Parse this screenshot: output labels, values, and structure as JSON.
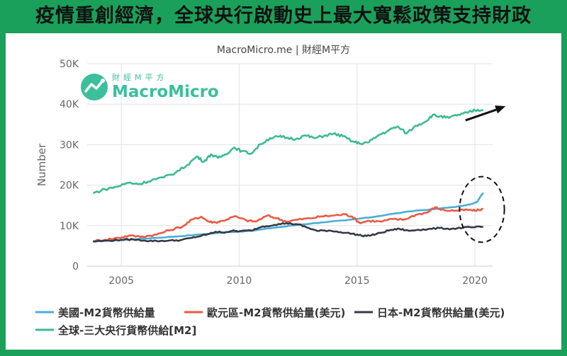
{
  "headline": "疫情重創經濟，全球央行啟動史上最大寬鬆政策支持財政",
  "logo": {
    "small_text": "財經M平方",
    "brand": "MacroMicro",
    "icon": "trend-line-icon",
    "color": "#3bbf9c"
  },
  "chart_data": {
    "type": "line",
    "title": "MacroMicro.me | 財經M平方",
    "xlabel": "",
    "ylabel": "Number",
    "xlim": [
      2003.55,
      2020.75
    ],
    "ylim": [
      0,
      50000
    ],
    "x_ticks": [
      2005,
      2010,
      2015,
      2020
    ],
    "x_tick_labels": [
      "2005",
      "2010",
      "2015",
      "2020"
    ],
    "y_ticks": [
      0,
      10000,
      20000,
      30000,
      40000,
      50000
    ],
    "y_tick_labels": [
      "0",
      "10K",
      "20K",
      "30K",
      "40K",
      "50K"
    ],
    "grid": true,
    "legend_position": "bottom",
    "series": [
      {
        "name": "美國-M2貨幣供給量",
        "color": "#4aaed6",
        "x": [
          2003.8,
          2004.5,
          2005.5,
          2006.5,
          2007.5,
          2008.5,
          2009.5,
          2010.5,
          2011.5,
          2012.5,
          2013.5,
          2014.5,
          2015.5,
          2016.5,
          2017.5,
          2018.5,
          2019.5,
          2019.9,
          2020.1,
          2020.25,
          2020.35
        ],
        "y": [
          6100,
          6300,
          6600,
          7000,
          7400,
          7900,
          8400,
          8700,
          9500,
          10200,
          10800,
          11300,
          12000,
          12900,
          13700,
          14200,
          14900,
          15400,
          15900,
          17300,
          18100
        ]
      },
      {
        "name": "歐元區-M2貨幣供給量(美元)",
        "color": "#ea5a45",
        "x": [
          2003.8,
          2004.3,
          2004.9,
          2005.3,
          2005.9,
          2006.5,
          2007.0,
          2007.6,
          2008.0,
          2008.4,
          2008.7,
          2009.0,
          2009.3,
          2009.8,
          2010.3,
          2010.7,
          2011.2,
          2011.6,
          2012.0,
          2012.5,
          2013.0,
          2013.5,
          2014.0,
          2014.5,
          2014.8,
          2015.1,
          2015.5,
          2016.0,
          2016.5,
          2017.0,
          2017.5,
          2018.0,
          2018.3,
          2018.7,
          2019.2,
          2019.7,
          2020.0,
          2020.35
        ],
        "y": [
          6200,
          6500,
          7000,
          7500,
          7300,
          7800,
          8800,
          9800,
          11500,
          12200,
          11000,
          10800,
          11200,
          12300,
          11300,
          11000,
          12500,
          11800,
          11000,
          11500,
          11800,
          12300,
          12500,
          12800,
          12200,
          10700,
          11200,
          11000,
          11600,
          11500,
          12700,
          13300,
          14500,
          13800,
          13700,
          13900,
          13700,
          14100
        ]
      },
      {
        "name": "日本-M2貨幣供給量(美元)",
        "color": "#333a44",
        "x": [
          2003.8,
          2004.5,
          2005.0,
          2005.5,
          2006.0,
          2006.5,
          2007.0,
          2007.5,
          2008.0,
          2008.4,
          2008.7,
          2009.0,
          2009.3,
          2009.7,
          2010.0,
          2010.5,
          2011.0,
          2011.5,
          2012.0,
          2012.5,
          2012.9,
          2013.3,
          2013.8,
          2014.3,
          2014.8,
          2015.2,
          2015.6,
          2016.0,
          2016.4,
          2016.8,
          2017.2,
          2017.6,
          2018.0,
          2018.5,
          2019.0,
          2019.5,
          2020.0,
          2020.35
        ],
        "y": [
          6100,
          6300,
          6500,
          6600,
          6300,
          6200,
          6300,
          6400,
          7000,
          7500,
          7900,
          8500,
          8300,
          8700,
          8600,
          8800,
          9800,
          10200,
          10600,
          10300,
          9500,
          8700,
          8800,
          8400,
          8000,
          7500,
          7600,
          8200,
          8900,
          9200,
          8700,
          9000,
          9100,
          9400,
          9200,
          9500,
          9600,
          9700
        ]
      },
      {
        "name": "全球-三大央行貨幣供給[M2]",
        "color": "#3dbb8e",
        "x": [
          2003.8,
          2004.3,
          2004.8,
          2005.3,
          2005.8,
          2006.3,
          2006.8,
          2007.3,
          2007.8,
          2008.2,
          2008.5,
          2008.8,
          2009.1,
          2009.4,
          2009.8,
          2010.1,
          2010.5,
          2010.9,
          2011.3,
          2011.7,
          2012.0,
          2012.4,
          2012.8,
          2013.2,
          2013.6,
          2014.0,
          2014.4,
          2014.8,
          2015.1,
          2015.5,
          2015.9,
          2016.3,
          2016.7,
          2017.1,
          2017.5,
          2017.9,
          2018.2,
          2018.5,
          2018.9,
          2019.3,
          2019.7,
          2020.0,
          2020.35
        ],
        "y": [
          18000,
          19000,
          19600,
          20600,
          20300,
          21300,
          21900,
          23100,
          25000,
          27100,
          25800,
          27600,
          26700,
          27600,
          29300,
          28400,
          27800,
          30100,
          31600,
          32000,
          31700,
          31400,
          32300,
          31600,
          32200,
          32700,
          32100,
          30800,
          30300,
          30600,
          32300,
          33400,
          34500,
          32800,
          34700,
          35700,
          37300,
          37000,
          36600,
          37400,
          37900,
          38500,
          38600
        ]
      }
    ],
    "annotation_arrow": {
      "from": [
        2019.6,
        36000
      ],
      "to": [
        2021.3,
        39500
      ]
    },
    "annotation_ellipse": {
      "center": [
        2020.3,
        14000
      ],
      "rx_years": 0.95,
      "ry_units": 8100
    }
  }
}
